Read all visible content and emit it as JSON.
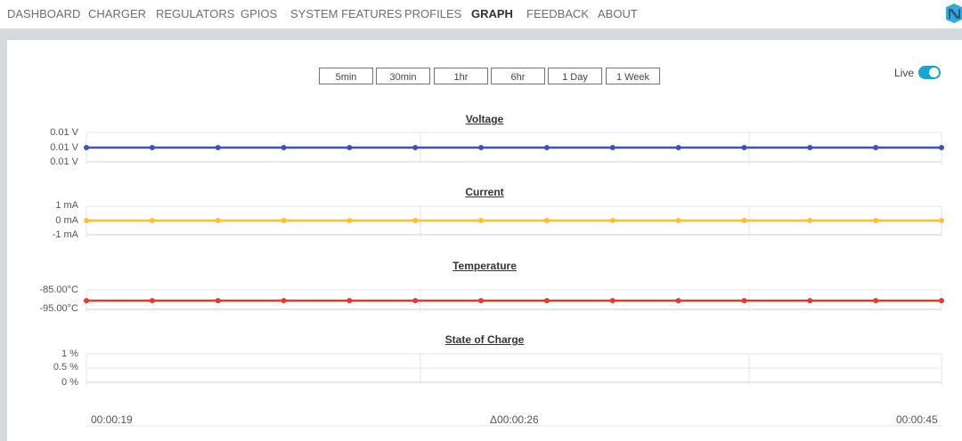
{
  "nav": {
    "items": [
      "DASHBOARD",
      "CHARGER",
      "REGULATORS",
      "GPIOS",
      "SYSTEM FEATURES",
      "PROFILES",
      "GRAPH",
      "FEEDBACK",
      "ABOUT"
    ],
    "active": "GRAPH"
  },
  "ranges": [
    "5min",
    "30min",
    "1hr",
    "6hr",
    "1 Day",
    "1 Week"
  ],
  "live": {
    "label": "Live",
    "on": true
  },
  "time_axis": {
    "start": "00:00:19",
    "delta": "Δ00:00:26",
    "end": "00:00:45"
  },
  "colors": {
    "voltage": "#3f51b5",
    "current": "#fbc02d",
    "temperature": "#e53935",
    "accent": "#1aa2d4"
  },
  "chart_data": [
    {
      "type": "line",
      "title": "Voltage",
      "unit": "V",
      "yticks": [
        "0.01 V",
        "0.01 V",
        "0.01 V"
      ],
      "values": [
        0.01,
        0.01,
        0.01,
        0.01,
        0.01,
        0.01,
        0.01,
        0.01,
        0.01,
        0.01,
        0.01,
        0.01,
        0.01,
        0.01
      ],
      "color": "#3f51b5"
    },
    {
      "type": "line",
      "title": "Current",
      "unit": "mA",
      "yticks": [
        "1 mA",
        "0 mA",
        "-1 mA"
      ],
      "ylim": [
        -1,
        1
      ],
      "values": [
        0,
        0,
        0,
        0,
        0,
        0,
        0,
        0,
        0,
        0,
        0,
        0,
        0,
        0
      ],
      "color": "#fbc02d"
    },
    {
      "type": "line",
      "title": "Temperature",
      "unit": "°C",
      "yticks": [
        "-85.00°C",
        "-95.00°C"
      ],
      "ylim": [
        -95,
        -85
      ],
      "values": [
        -90.5,
        -90.5,
        -90.5,
        -90.5,
        -90.5,
        -90.5,
        -90.5,
        -90.5,
        -90.5,
        -90.5,
        -90.5,
        -90.5,
        -90.5,
        -90.5
      ],
      "color": "#e53935"
    },
    {
      "type": "line",
      "title": "State of Charge",
      "unit": "%",
      "yticks": [
        "1 %",
        "0.5 %",
        "0 %"
      ],
      "ylim": [
        0,
        1
      ],
      "values": []
    }
  ]
}
